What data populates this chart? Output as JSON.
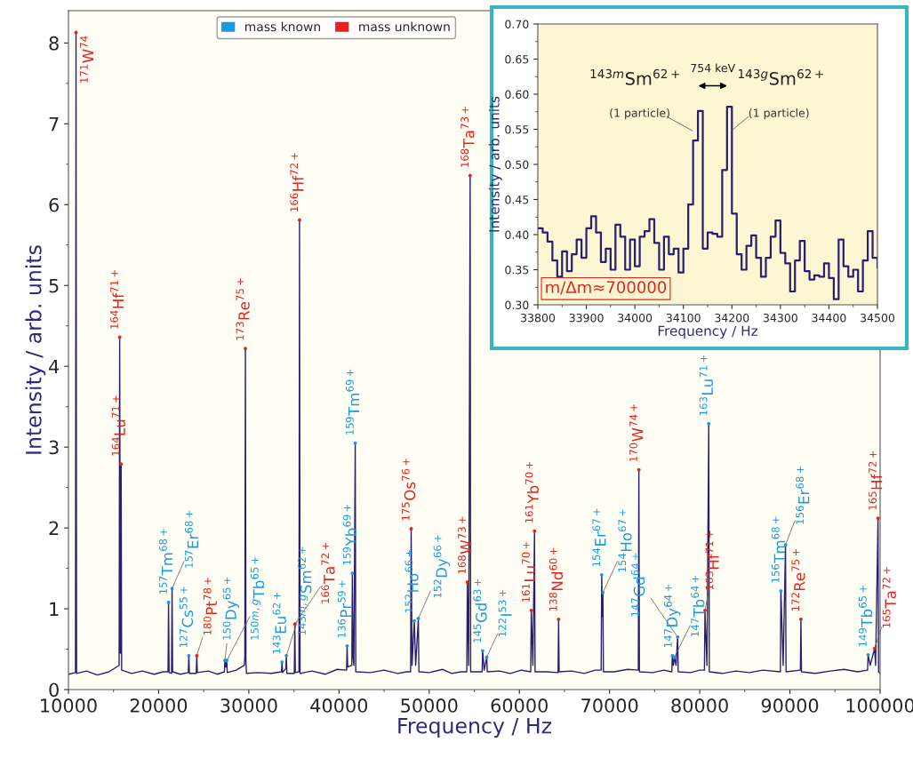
{
  "chart_data": [
    {
      "type": "line",
      "xlabel": "Frequency / Hz",
      "ylabel": "Intensity / arb. units",
      "xlim": [
        10000,
        100000
      ],
      "xticks": [
        10000,
        20000,
        30000,
        40000,
        50000,
        60000,
        70000,
        80000,
        90000,
        100000
      ],
      "ylim": [
        0,
        8.4
      ],
      "yticks": [
        0,
        1,
        2,
        3,
        4,
        5,
        6,
        7,
        8
      ],
      "legend": "top",
      "series": [
        {
          "type": "line",
          "color": "#2a1f6e",
          "x": [
            10000,
            10780,
            10840,
            10900,
            12000,
            13200,
            14500,
            15620,
            15680,
            15760,
            15840,
            15900,
            17000,
            18200,
            19500,
            20500,
            21040,
            21100,
            21160,
            21430,
            21490,
            21550,
            22400,
            23290,
            23350,
            23410,
            24170,
            24230,
            24290,
            25500,
            26500,
            27290,
            27350,
            27450,
            27550,
            27610,
            28600,
            29500,
            29560,
            29620,
            29680,
            29740,
            31000,
            32500,
            33620,
            33680,
            33740,
            34100,
            34160,
            34220,
            35040,
            35100,
            35160,
            35560,
            35620,
            35680,
            37000,
            38500,
            39800,
            40840,
            40900,
            40960,
            41420,
            41480,
            41560,
            41650,
            41800,
            41860,
            43500,
            45000,
            46500,
            47500,
            47940,
            48000,
            48100,
            48350,
            48500,
            48800,
            48860,
            50000,
            51500,
            52500,
            53500,
            54170,
            54230,
            54380,
            54540,
            54600,
            55870,
            55930,
            56100,
            56380,
            56440,
            57800,
            59000,
            60200,
            61260,
            61320,
            61500,
            61680,
            61740,
            63000,
            64290,
            64350,
            64410,
            65800,
            67200,
            68400,
            69070,
            69130,
            69200,
            69260,
            69320,
            70500,
            72000,
            73190,
            73250,
            73310,
            74800,
            76000,
            76900,
            76960,
            77080,
            77190,
            77370,
            77550,
            77610,
            79000,
            80000,
            80520,
            80580,
            80800,
            81000,
            81060,
            82500,
            84000,
            85500,
            87000,
            88940,
            89000,
            89250,
            89510,
            89570,
            91160,
            91220,
            91280,
            92800,
            94500,
            96000,
            97500,
            98610,
            98670,
            98900,
            99390,
            99500,
            99770,
            99830,
            100000
          ],
          "values": [
            0.19,
            0.21,
            8.13,
            0.2,
            0.23,
            0.18,
            0.22,
            0.3,
            4.36,
            0.45,
            2.79,
            0.24,
            0.2,
            0.23,
            0.19,
            0.22,
            0.22,
            1.08,
            0.21,
            0.2,
            1.25,
            0.22,
            0.19,
            0.21,
            0.42,
            0.2,
            0.2,
            0.42,
            0.21,
            0.23,
            0.19,
            0.22,
            0.36,
            0.28,
            0.36,
            0.21,
            0.24,
            0.3,
            0.4,
            4.22,
            0.35,
            0.2,
            0.21,
            0.2,
            0.22,
            0.34,
            0.21,
            0.26,
            0.42,
            0.2,
            0.2,
            0.81,
            0.21,
            0.22,
            5.81,
            0.2,
            0.23,
            0.19,
            0.25,
            0.24,
            0.54,
            0.28,
            0.3,
            1.44,
            0.4,
            0.3,
            3.05,
            0.22,
            0.21,
            0.24,
            0.2,
            0.22,
            0.22,
            1.99,
            0.3,
            0.85,
            0.3,
            0.88,
            0.22,
            0.21,
            0.25,
            0.2,
            0.22,
            0.22,
            1.33,
            0.3,
            6.36,
            0.22,
            0.22,
            0.48,
            0.24,
            0.4,
            0.22,
            0.23,
            0.2,
            0.24,
            0.22,
            0.98,
            0.3,
            1.96,
            0.22,
            0.22,
            0.21,
            0.87,
            0.22,
            0.23,
            0.2,
            0.24,
            0.24,
            1.42,
            0.9,
            1.2,
            0.22,
            0.22,
            0.25,
            0.24,
            2.72,
            0.22,
            0.21,
            0.24,
            0.22,
            0.42,
            0.3,
            0.4,
            0.3,
            0.65,
            0.22,
            0.21,
            0.24,
            0.24,
            0.98,
            0.3,
            3.29,
            0.22,
            0.2,
            0.23,
            0.21,
            0.24,
            0.22,
            1.22,
            0.3,
            1.79,
            0.22,
            0.24,
            0.87,
            0.22,
            0.2,
            0.23,
            0.25,
            0.22,
            0.24,
            0.43,
            0.3,
            0.51,
            0.3,
            2.12,
            0.22,
            0.2
          ]
        },
        {
          "type": "scatter",
          "name": "mass known",
          "color": "#1a9be0",
          "marker": "circle",
          "x": [
            21100,
            21490,
            23350,
            27350,
            27550,
            33680,
            34160,
            40900,
            41480,
            41800,
            48350,
            48800,
            55930,
            56380,
            69130,
            69260,
            76960,
            77190,
            77550,
            81000,
            89000,
            89510,
            98670
          ],
          "values": [
            1.08,
            1.25,
            0.42,
            0.36,
            0.36,
            0.34,
            0.42,
            0.54,
            1.44,
            3.05,
            0.85,
            0.88,
            0.48,
            0.4,
            1.42,
            1.2,
            0.42,
            0.4,
            0.65,
            3.29,
            1.22,
            1.79,
            0.43
          ],
          "value_labels": [
            "$^{157}$Tm$^{68+}$",
            "$^{157}$Er$^{68+}$",
            "$^{127}$Cs$^{55+}$",
            "$^{150}$Dy$^{65+}$",
            "$^{150m,g}$Tb$^{65+}$",
            "$^{143}$Eu$^{62+}$",
            "$^{143m,g}$Sm$^{62+}$",
            "$^{136}$Pr$^{59+}$",
            "$^{159}$Yb$^{69+}$",
            "$^{159}$Tm$^{69+}$",
            "$^{152}$Ho$^{66+}$",
            "$^{152}$Dy$^{66+}$",
            "$^{145}$Gd$^{63+}$",
            "$^{122}$I$^{53+}$",
            "$^{154}$Er$^{67+}$",
            "$^{154}$Ho$^{67+}$",
            "$^{147}$Dy$^{64+}$",
            "$^{147}$Tb$^{64+}$",
            "$^{147}$Gd$^{64+}$",
            "$^{163}$Lu$^{71+}$",
            "$^{156}$Tm$^{68+}$",
            "$^{156}$Er$^{68+}$",
            "$^{149}$Tb$^{65+}$"
          ]
        },
        {
          "type": "scatter",
          "name": "mass unknown",
          "color": "#e5231b",
          "marker": "circle",
          "x": [
            10840,
            15680,
            15840,
            24230,
            29620,
            35100,
            35620,
            48000,
            54230,
            54540,
            61320,
            61680,
            64350,
            73250,
            80580,
            91220,
            99390,
            99770
          ],
          "values": [
            8.13,
            4.36,
            2.79,
            0.42,
            4.22,
            0.81,
            5.81,
            1.99,
            1.33,
            6.36,
            0.98,
            1.96,
            0.87,
            2.72,
            0.98,
            0.87,
            0.51,
            2.12
          ],
          "value_labels": [
            "$^{171}$W$^{74}$",
            "$^{164}$Hf$^{71+}$",
            "$^{164}$Lu$^{71+}$",
            "$^{180}$Pt$^{78+}$",
            "$^{173}$Re$^{75+}$",
            "$^{166}$Ta$^{72+}$",
            "$^{166}$Hf$^{72+}$",
            "$^{175}$Os$^{76+}$",
            "$^{168}$W$^{73+}$",
            "$^{168}$Ta$^{73+}$",
            "$^{161}$Lu$^{70+}$",
            "$^{161}$Yb$^{70+}$",
            "$^{138}$Nd$^{60+}$",
            "$^{170}$W$^{74+}$",
            "$^{163}$Hf$^{71+}$",
            "$^{172}$Re$^{75+}$",
            "$^{165}$Ta$^{72+}$",
            "$^{165}$Hf$^{72+}$"
          ]
        }
      ]
    },
    {
      "type": "step",
      "xlabel": "Frequency / Hz",
      "ylabel": "Intensity / arb. units",
      "xlim": [
        33800,
        34500
      ],
      "xticks": [
        33800,
        33900,
        34000,
        34100,
        34200,
        34300,
        34400,
        34500
      ],
      "ylim": [
        0.3,
        0.7
      ],
      "yticks": [
        {
          "value": 0.3,
          "label": "0.30"
        },
        {
          "value": 0.35,
          "label": "0.35"
        },
        {
          "value": 0.4,
          "label": "0.40"
        },
        {
          "value": 0.45,
          "label": "0.45"
        },
        {
          "value": 0.5,
          "label": "0.50"
        },
        {
          "value": 0.55,
          "label": "0.55"
        },
        {
          "value": 0.6,
          "label": "0.60"
        },
        {
          "value": 0.65,
          "label": "0.65"
        },
        {
          "value": 0.7,
          "label": "0.70"
        }
      ],
      "grid": false,
      "series": [
        {
          "color": "#2a1f6e",
          "x": [
            33800,
            33810,
            33820,
            33830,
            33840,
            33850,
            33860,
            33870,
            33880,
            33890,
            33900,
            33910,
            33920,
            33930,
            33940,
            33950,
            33960,
            33970,
            33980,
            33990,
            34000,
            34010,
            34020,
            34030,
            34040,
            34050,
            34060,
            34070,
            34080,
            34090,
            34100,
            34110,
            34120,
            34130,
            34140,
            34150,
            34160,
            34170,
            34180,
            34190,
            34200,
            34210,
            34220,
            34230,
            34240,
            34250,
            34260,
            34270,
            34280,
            34290,
            34300,
            34310,
            34320,
            34330,
            34340,
            34350,
            34360,
            34370,
            34380,
            34390,
            34400,
            34410,
            34420,
            34430,
            34440,
            34450,
            34460,
            34470,
            34480,
            34490,
            34500
          ],
          "values": [
            0.409,
            0.403,
            0.39,
            0.363,
            0.34,
            0.376,
            0.348,
            0.372,
            0.393,
            0.367,
            0.409,
            0.426,
            0.403,
            0.361,
            0.38,
            0.35,
            0.414,
            0.397,
            0.35,
            0.393,
            0.355,
            0.397,
            0.405,
            0.422,
            0.388,
            0.35,
            0.397,
            0.372,
            0.38,
            0.346,
            0.38,
            0.443,
            0.534,
            0.576,
            0.38,
            0.403,
            0.401,
            0.397,
            0.492,
            0.582,
            0.43,
            0.372,
            0.35,
            0.384,
            0.399,
            0.367,
            0.34,
            0.367,
            0.397,
            0.42,
            0.374,
            0.359,
            0.319,
            0.363,
            0.391,
            0.348,
            0.336,
            0.342,
            0.34,
            0.359,
            0.338,
            0.308,
            0.393,
            0.355,
            0.34,
            0.35,
            0.319,
            0.363,
            0.405,
            0.367,
            0.353
          ]
        }
      ],
      "annotations": [
        "$^{143m}$Sm$^{62+}$",
        "(1 particle)",
        "$^{143g}$Sm$^{62+}$",
        "(1 particle)",
        "754 keV",
        "m/Δm≈700000"
      ]
    }
  ]
}
